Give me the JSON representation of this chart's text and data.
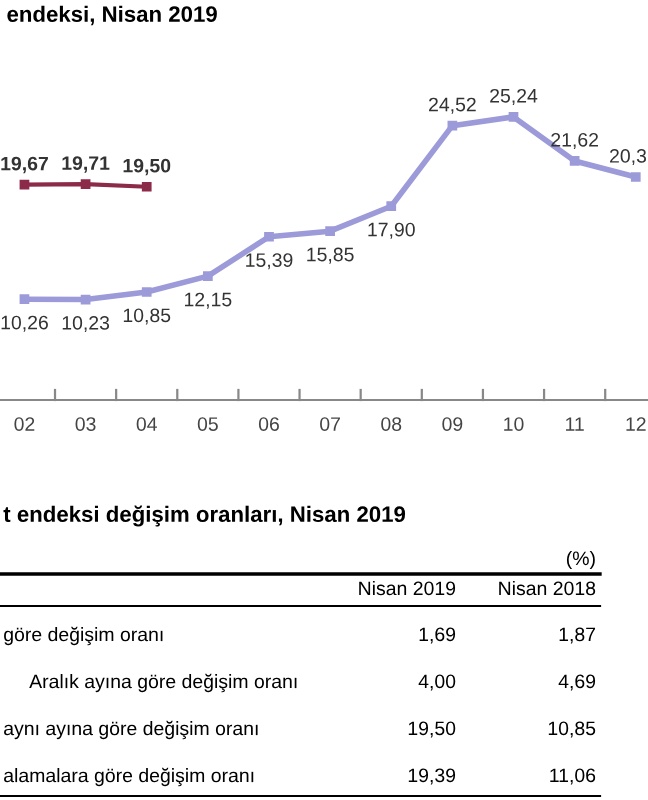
{
  "chart_data": {
    "type": "line",
    "title": "endeksi, Nisan 2019",
    "categories": [
      "02",
      "03",
      "04",
      "05",
      "06",
      "07",
      "08",
      "09",
      "10",
      "11",
      "12"
    ],
    "data_labels": true,
    "marker": "square",
    "grid": false,
    "series": [
      {
        "color": "#9c9ad8",
        "values": [
          10.26,
          10.23,
          10.85,
          12.15,
          15.39,
          15.85,
          17.9,
          24.52,
          25.24,
          21.62,
          20.3
        ],
        "value_labels": [
          "10,26",
          "10,23",
          "10,85",
          "12,15",
          "15,39",
          "15,85",
          "17,90",
          "24,52",
          "25,24",
          "21,62",
          "20,3"
        ]
      },
      {
        "color": "#8c2a4a",
        "values": [
          19.67,
          19.71,
          19.5,
          null,
          null,
          null,
          null,
          null,
          null,
          null,
          null
        ],
        "value_labels": [
          "19,67",
          "19,71",
          "19,50",
          null,
          null,
          null,
          null,
          null,
          null,
          null,
          null
        ]
      }
    ],
    "annotations": [
      "t endeksi değişim oranları, Nisan 2019",
      "(%)",
      "Nisan 2019",
      "Nisan 2018",
      "göre değişim oranı",
      "1,69",
      "1,87",
      "Aralık ayına göre değişim oranı",
      "4,00",
      "4,69",
      "aynı ayına göre değişim oranı",
      "19,50",
      "10,85",
      "alamalara göre değişim oranı",
      "19,39",
      "11,06"
    ]
  }
}
